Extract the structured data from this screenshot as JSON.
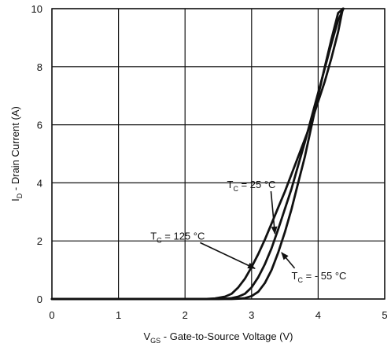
{
  "chart_data": {
    "type": "line",
    "title": "",
    "xlabel": "V_GS - Gate-to-Source Voltage (V)",
    "xlabel_main": "V",
    "xlabel_sub": "GS",
    "xlabel_rest": " - Gate-to-Source Voltage (V)",
    "ylabel": "I_D - Drain Current (A)",
    "ylabel_main": "I",
    "ylabel_sub": "D",
    "ylabel_rest": " - Drain Current (A)",
    "xlim": [
      0,
      5
    ],
    "ylim": [
      0,
      10
    ],
    "xticks": [
      "0",
      "1",
      "2",
      "3",
      "4",
      "5"
    ],
    "yticks": [
      "0",
      "2",
      "4",
      "6",
      "8",
      "10"
    ],
    "grid": true,
    "series": [
      {
        "name": "T_C = 25 °C",
        "x": [
          0,
          2.5,
          2.6,
          2.7,
          2.8,
          2.9,
          3.0,
          3.1,
          3.2,
          3.3,
          3.4,
          3.5,
          3.6,
          3.7,
          3.8,
          3.9,
          4.0,
          4.1,
          4.2,
          4.3,
          4.38
        ],
        "y": [
          0,
          0,
          0.01,
          0.03,
          0.08,
          0.18,
          0.4,
          0.75,
          1.2,
          1.75,
          2.4,
          3.1,
          3.8,
          4.6,
          5.4,
          6.25,
          7.1,
          7.95,
          8.8,
          9.6,
          10
        ]
      },
      {
        "name": "T_C = 125 °C",
        "x": [
          0,
          2.3,
          2.45,
          2.6,
          2.7,
          2.8,
          2.9,
          3.0,
          3.1,
          3.2,
          3.3,
          3.4,
          3.5,
          3.6,
          3.7,
          3.8,
          3.9,
          4.0,
          4.1,
          4.2,
          4.3,
          4.37
        ],
        "y": [
          0,
          0,
          0.02,
          0.08,
          0.18,
          0.4,
          0.7,
          1.1,
          1.55,
          2.05,
          2.6,
          3.15,
          3.7,
          4.3,
          4.9,
          5.5,
          6.1,
          6.8,
          7.5,
          8.3,
          9.2,
          10
        ]
      },
      {
        "name": "T_C = - 55 °C",
        "x": [
          0,
          2.7,
          2.8,
          2.9,
          3.0,
          3.1,
          3.2,
          3.3,
          3.4,
          3.5,
          3.6,
          3.7,
          3.8,
          3.9,
          4.0,
          4.1,
          4.2,
          4.3,
          4.38
        ],
        "y": [
          0,
          0,
          0.01,
          0.03,
          0.1,
          0.25,
          0.55,
          1.0,
          1.6,
          2.3,
          3.1,
          4.0,
          4.9,
          5.95,
          7.0,
          8.0,
          8.95,
          9.85,
          10
        ]
      }
    ],
    "annotations": [
      {
        "main": "T",
        "sub": "C",
        "rest": " = 25 °C",
        "series": 0,
        "label_x": 2.63,
        "label_y": 3.82,
        "arrow_x": 3.35,
        "arrow_y": 2.25
      },
      {
        "main": "T",
        "sub": "C",
        "rest": " = 125 °C",
        "series": 1,
        "label_x": 1.48,
        "label_y": 2.05,
        "arrow_x": 3.05,
        "arrow_y": 1.05
      },
      {
        "main": "T",
        "sub": "C",
        "rest": " = - 55 °C",
        "series": 2,
        "label_x": 3.6,
        "label_y": 0.68,
        "arrow_x": 3.45,
        "arrow_y": 1.6
      }
    ]
  }
}
